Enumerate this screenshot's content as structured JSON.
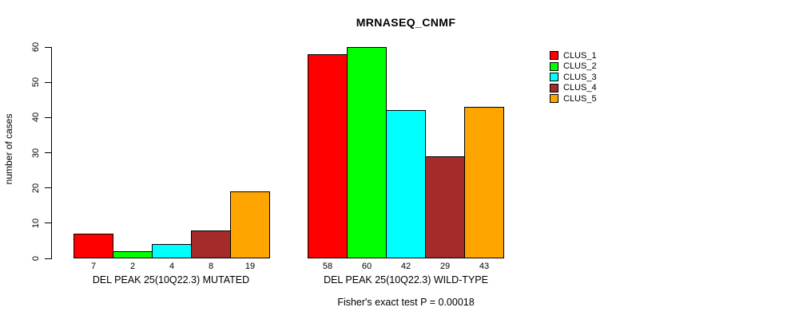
{
  "header": {
    "title": "MRNASEQ_CNMF"
  },
  "chart_data": {
    "type": "bar",
    "title": "MRNASEQ_CNMF",
    "xlabel": "",
    "ylabel": "number of cases",
    "ylim": [
      0,
      60
    ],
    "yticks": [
      0,
      10,
      20,
      30,
      40,
      50,
      60
    ],
    "grid": false,
    "legend_position": "top-right",
    "bar_value_labels_shown": true,
    "categories": [
      "DEL PEAK 25(10Q22.3) MUTATED",
      "DEL PEAK 25(10Q22.3) WILD-TYPE"
    ],
    "series": [
      {
        "name": "CLUS_1",
        "color": "#FF0000",
        "values": [
          7,
          58
        ]
      },
      {
        "name": "CLUS_2",
        "color": "#00FF00",
        "values": [
          2,
          60
        ]
      },
      {
        "name": "CLUS_3",
        "color": "#00FFFF",
        "values": [
          4,
          42
        ]
      },
      {
        "name": "CLUS_4",
        "color": "#A52A2A",
        "values": [
          8,
          29
        ]
      },
      {
        "name": "CLUS_5",
        "color": "#FFA500",
        "values": [
          19,
          43
        ]
      }
    ]
  },
  "footer": {
    "caption": "Fisher's exact test P = 0.00018"
  }
}
